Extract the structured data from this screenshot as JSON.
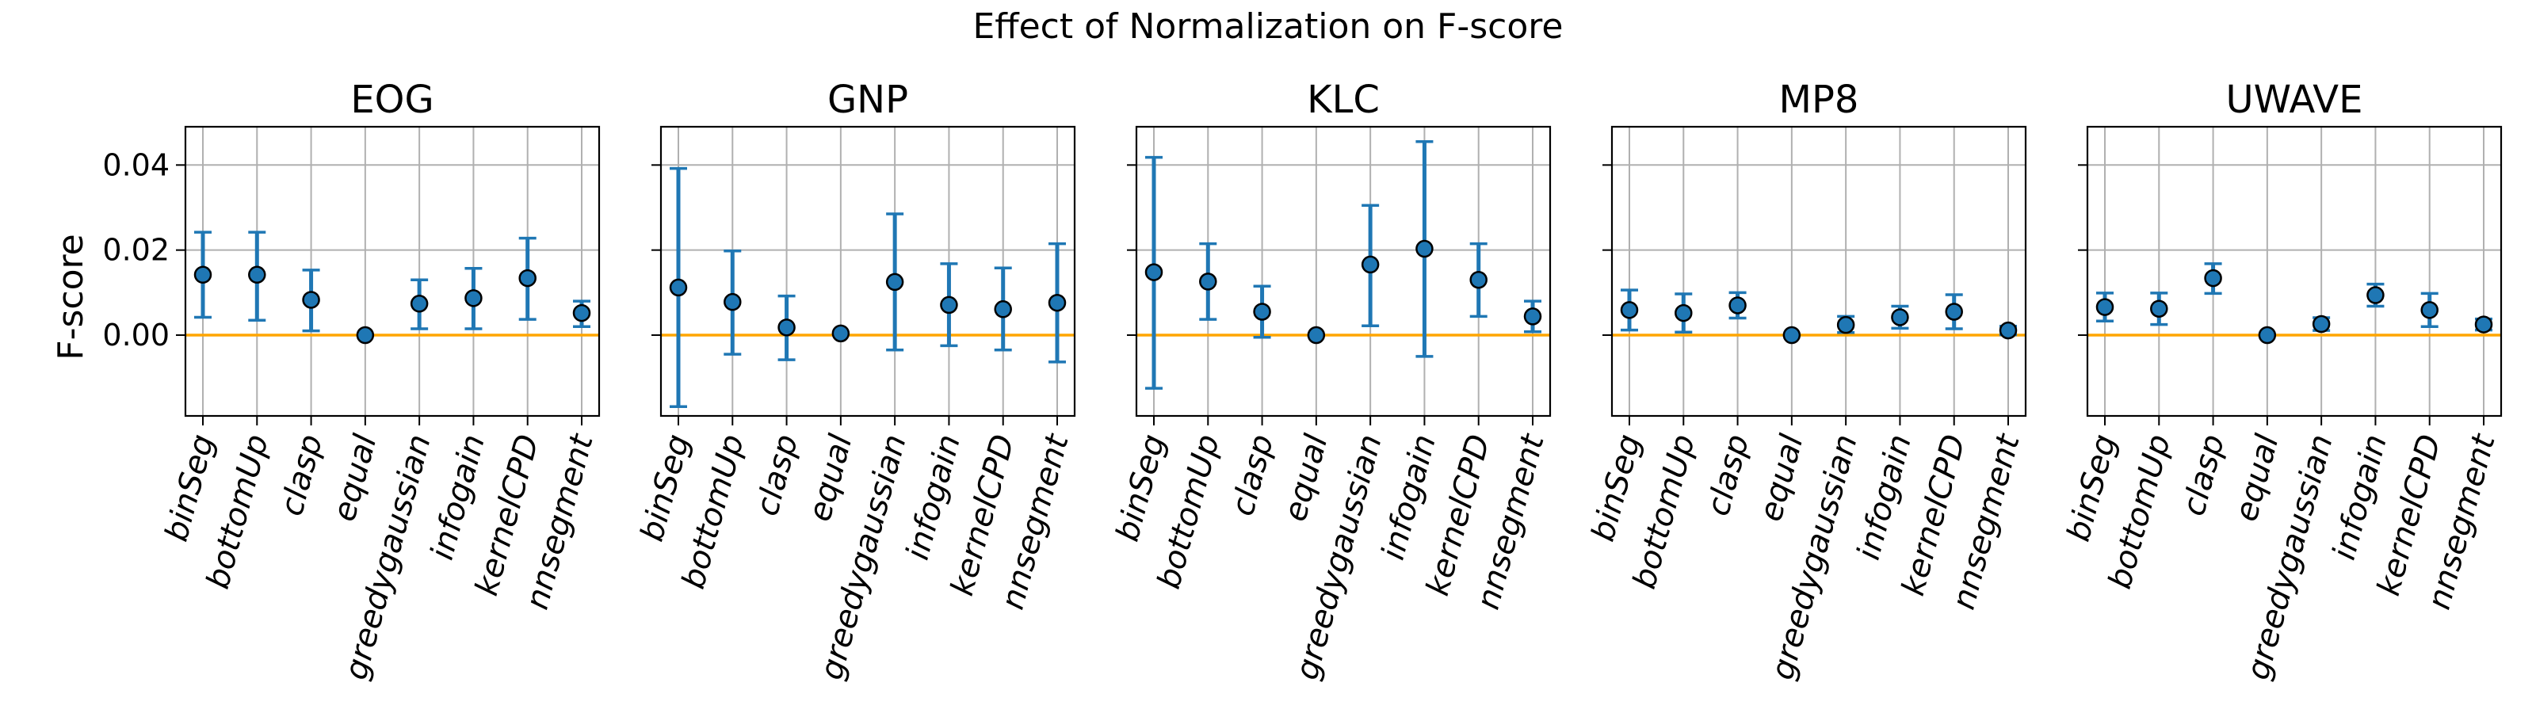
{
  "figure": {
    "suptitle": "Effect of Normalization on F-score",
    "ylabel": "F-score"
  },
  "colors": {
    "marker": "#1f77b4",
    "errorbar": "#1f77b4",
    "baseline": "#ffa500",
    "grid": "#b0b0b0"
  },
  "chart_data": {
    "type": "scatter",
    "layout": "five panels sharing y axis, points with error bars, horizontal baseline at y=0",
    "categories": [
      "binSeg",
      "bottomUp",
      "clasp",
      "equal",
      "greedygaussian",
      "infogain",
      "kernelCPD",
      "nnsegment"
    ],
    "ylim": [
      -0.019,
      0.049
    ],
    "yticks": [
      0.0,
      0.02,
      0.04
    ],
    "ytick_labels": [
      "0.00",
      "0.02",
      "0.04"
    ],
    "baseline": 0.0,
    "grid": true,
    "panels": [
      {
        "title": "EOG",
        "values": [
          0.0142,
          0.0142,
          0.0083,
          0.0,
          0.0074,
          0.0087,
          0.0134,
          0.0052
        ],
        "err_low": [
          0.0042,
          0.0035,
          0.001,
          0.0,
          0.0015,
          0.0015,
          0.0037,
          0.002
        ],
        "err_high": [
          0.0242,
          0.0242,
          0.0153,
          0.0,
          0.013,
          0.0157,
          0.0228,
          0.008
        ]
      },
      {
        "title": "GNP",
        "values": [
          0.0112,
          0.0078,
          0.0018,
          0.0004,
          0.0125,
          0.0071,
          0.0061,
          0.0076
        ],
        "err_low": [
          -0.0168,
          -0.0045,
          -0.0058,
          0.0004,
          -0.0035,
          -0.0025,
          -0.0035,
          -0.0063
        ],
        "err_high": [
          0.0392,
          0.0198,
          0.0092,
          0.0004,
          0.0285,
          0.0168,
          0.0158,
          0.0215
        ]
      },
      {
        "title": "KLC",
        "values": [
          0.0148,
          0.0126,
          0.0055,
          0.0,
          0.0166,
          0.0203,
          0.013,
          0.0044
        ],
        "err_low": [
          -0.0125,
          0.0037,
          -0.0005,
          0.0,
          0.0022,
          -0.005,
          0.0044,
          0.0008
        ],
        "err_high": [
          0.0418,
          0.0215,
          0.0115,
          0.0,
          0.0305,
          0.0455,
          0.0215,
          0.008
        ]
      },
      {
        "title": "MP8",
        "values": [
          0.0059,
          0.0052,
          0.007,
          0.0,
          0.0024,
          0.0042,
          0.0055,
          0.0011
        ],
        "err_low": [
          0.0012,
          0.0007,
          0.004,
          0.0,
          0.0006,
          0.0016,
          0.0015,
          0.0001
        ],
        "err_high": [
          0.0106,
          0.0097,
          0.01,
          0.0,
          0.0044,
          0.0068,
          0.0095,
          0.0021
        ]
      },
      {
        "title": "UWAVE",
        "values": [
          0.0066,
          0.0062,
          0.0134,
          0.0,
          0.0026,
          0.0094,
          0.0059,
          0.0025
        ],
        "err_low": [
          0.0033,
          0.0025,
          0.0098,
          0.0,
          0.0011,
          0.0068,
          0.002,
          0.0012
        ],
        "err_high": [
          0.0099,
          0.0099,
          0.0168,
          0.0,
          0.0041,
          0.012,
          0.0098,
          0.0038
        ]
      }
    ]
  }
}
